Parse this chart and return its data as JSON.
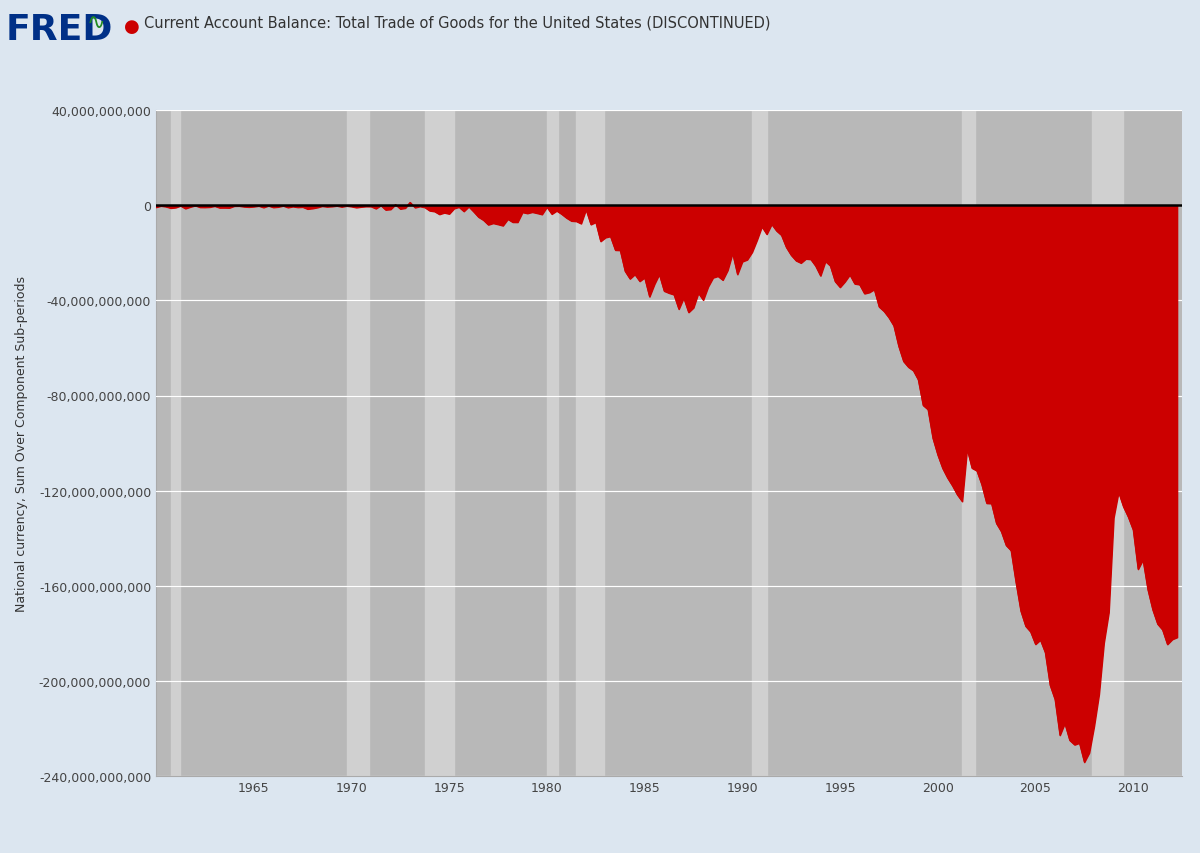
{
  "title": "Current Account Balance: Total Trade of Goods for the United States (DISCONTINUED)",
  "ylabel": "National currency, Sum Over Component Sub-periods",
  "background_color": "#dce6f0",
  "plot_bg_color": "#b8b8b8",
  "recession_band_color": "#d0d0d0",
  "line_color": "#cc0000",
  "fill_color": "#cc0000",
  "zero_line_color": "#000000",
  "ylim": [
    -240000000000,
    40000000000
  ],
  "yticks": [
    40000000000,
    0,
    -40000000000,
    -80000000000,
    -120000000000,
    -160000000000,
    -200000000000,
    -240000000000
  ],
  "recession_bands": [
    [
      1960.75,
      1961.25
    ],
    [
      1969.75,
      1970.92
    ],
    [
      1973.75,
      1975.25
    ],
    [
      1980.0,
      1980.58
    ],
    [
      1981.5,
      1982.92
    ],
    [
      1990.5,
      1991.25
    ],
    [
      2001.25,
      2001.92
    ],
    [
      2007.92,
      2009.5
    ]
  ],
  "fred_logo_color": "#003087",
  "dot_color": "#cc0000",
  "xlim": [
    1960.0,
    2012.5
  ],
  "xticks": [
    1965,
    1970,
    1975,
    1980,
    1985,
    1990,
    1995,
    2000,
    2005,
    2010
  ],
  "grid_color": "#ffffff",
  "spine_color": "#aaaaaa"
}
